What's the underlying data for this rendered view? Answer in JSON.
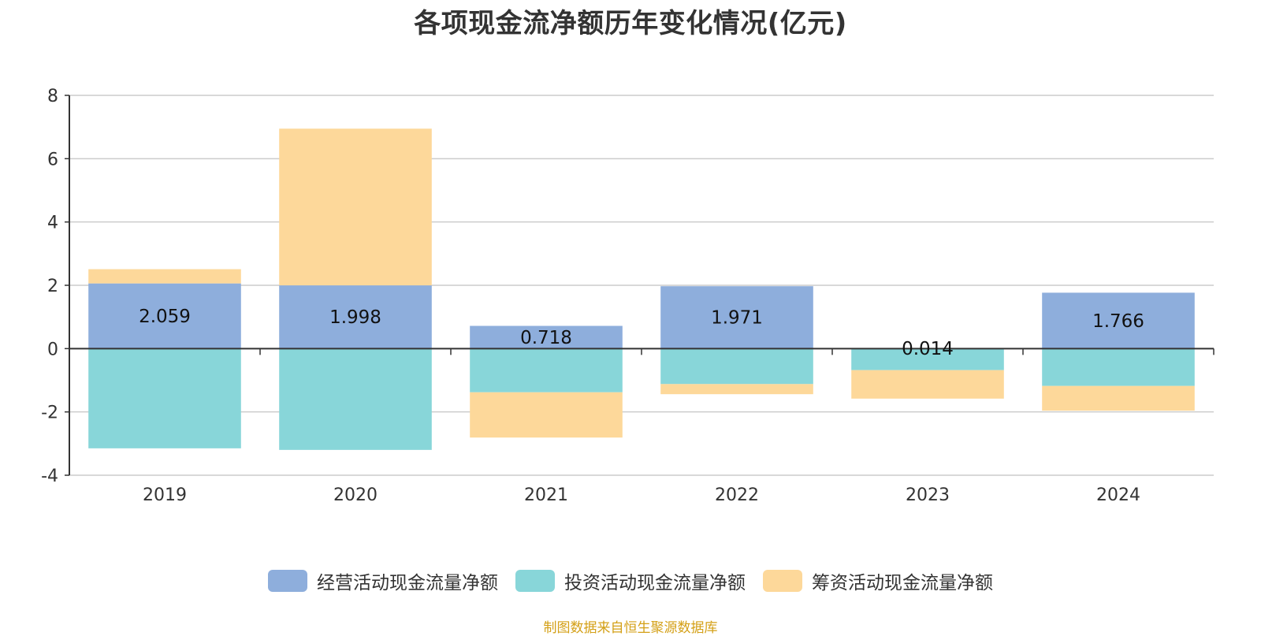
{
  "chart_data": {
    "type": "bar",
    "stacked": true,
    "title": "各项现金流净额历年变化情况(亿元)",
    "xlabel": "",
    "ylabel": "",
    "categories": [
      "2019",
      "2020",
      "2021",
      "2022",
      "2023",
      "2024"
    ],
    "ylim": [
      -4,
      8
    ],
    "yticks": [
      8,
      6,
      4,
      2,
      0,
      -2,
      -4
    ],
    "grid": true,
    "legend_position": "bottom",
    "series": [
      {
        "name": "经营活动现金流量净额",
        "color": "#8eaedc",
        "values": [
          2.059,
          1.998,
          0.718,
          1.971,
          0.014,
          1.766
        ]
      },
      {
        "name": "投资活动现金流量净额",
        "color": "#88d6d9",
        "values": [
          -3.15,
          -3.2,
          -1.38,
          -1.12,
          -0.68,
          -1.18
        ]
      },
      {
        "name": "筹资活动现金流量净额",
        "color": "#fdd89a",
        "values": [
          0.45,
          4.95,
          -1.43,
          -0.32,
          -0.9,
          -0.78
        ]
      }
    ],
    "data_labels": [
      "2.059",
      "1.998",
      "0.718",
      "1.971",
      "0.014",
      "1.766"
    ]
  },
  "legend": {
    "items": [
      {
        "label": "经营活动现金流量净额",
        "color": "#8eaedc"
      },
      {
        "label": "投资活动现金流量净额",
        "color": "#88d6d9"
      },
      {
        "label": "筹资活动现金流量净额",
        "color": "#fdd89a"
      }
    ]
  },
  "source_note": "制图数据来自恒生聚源数据库"
}
